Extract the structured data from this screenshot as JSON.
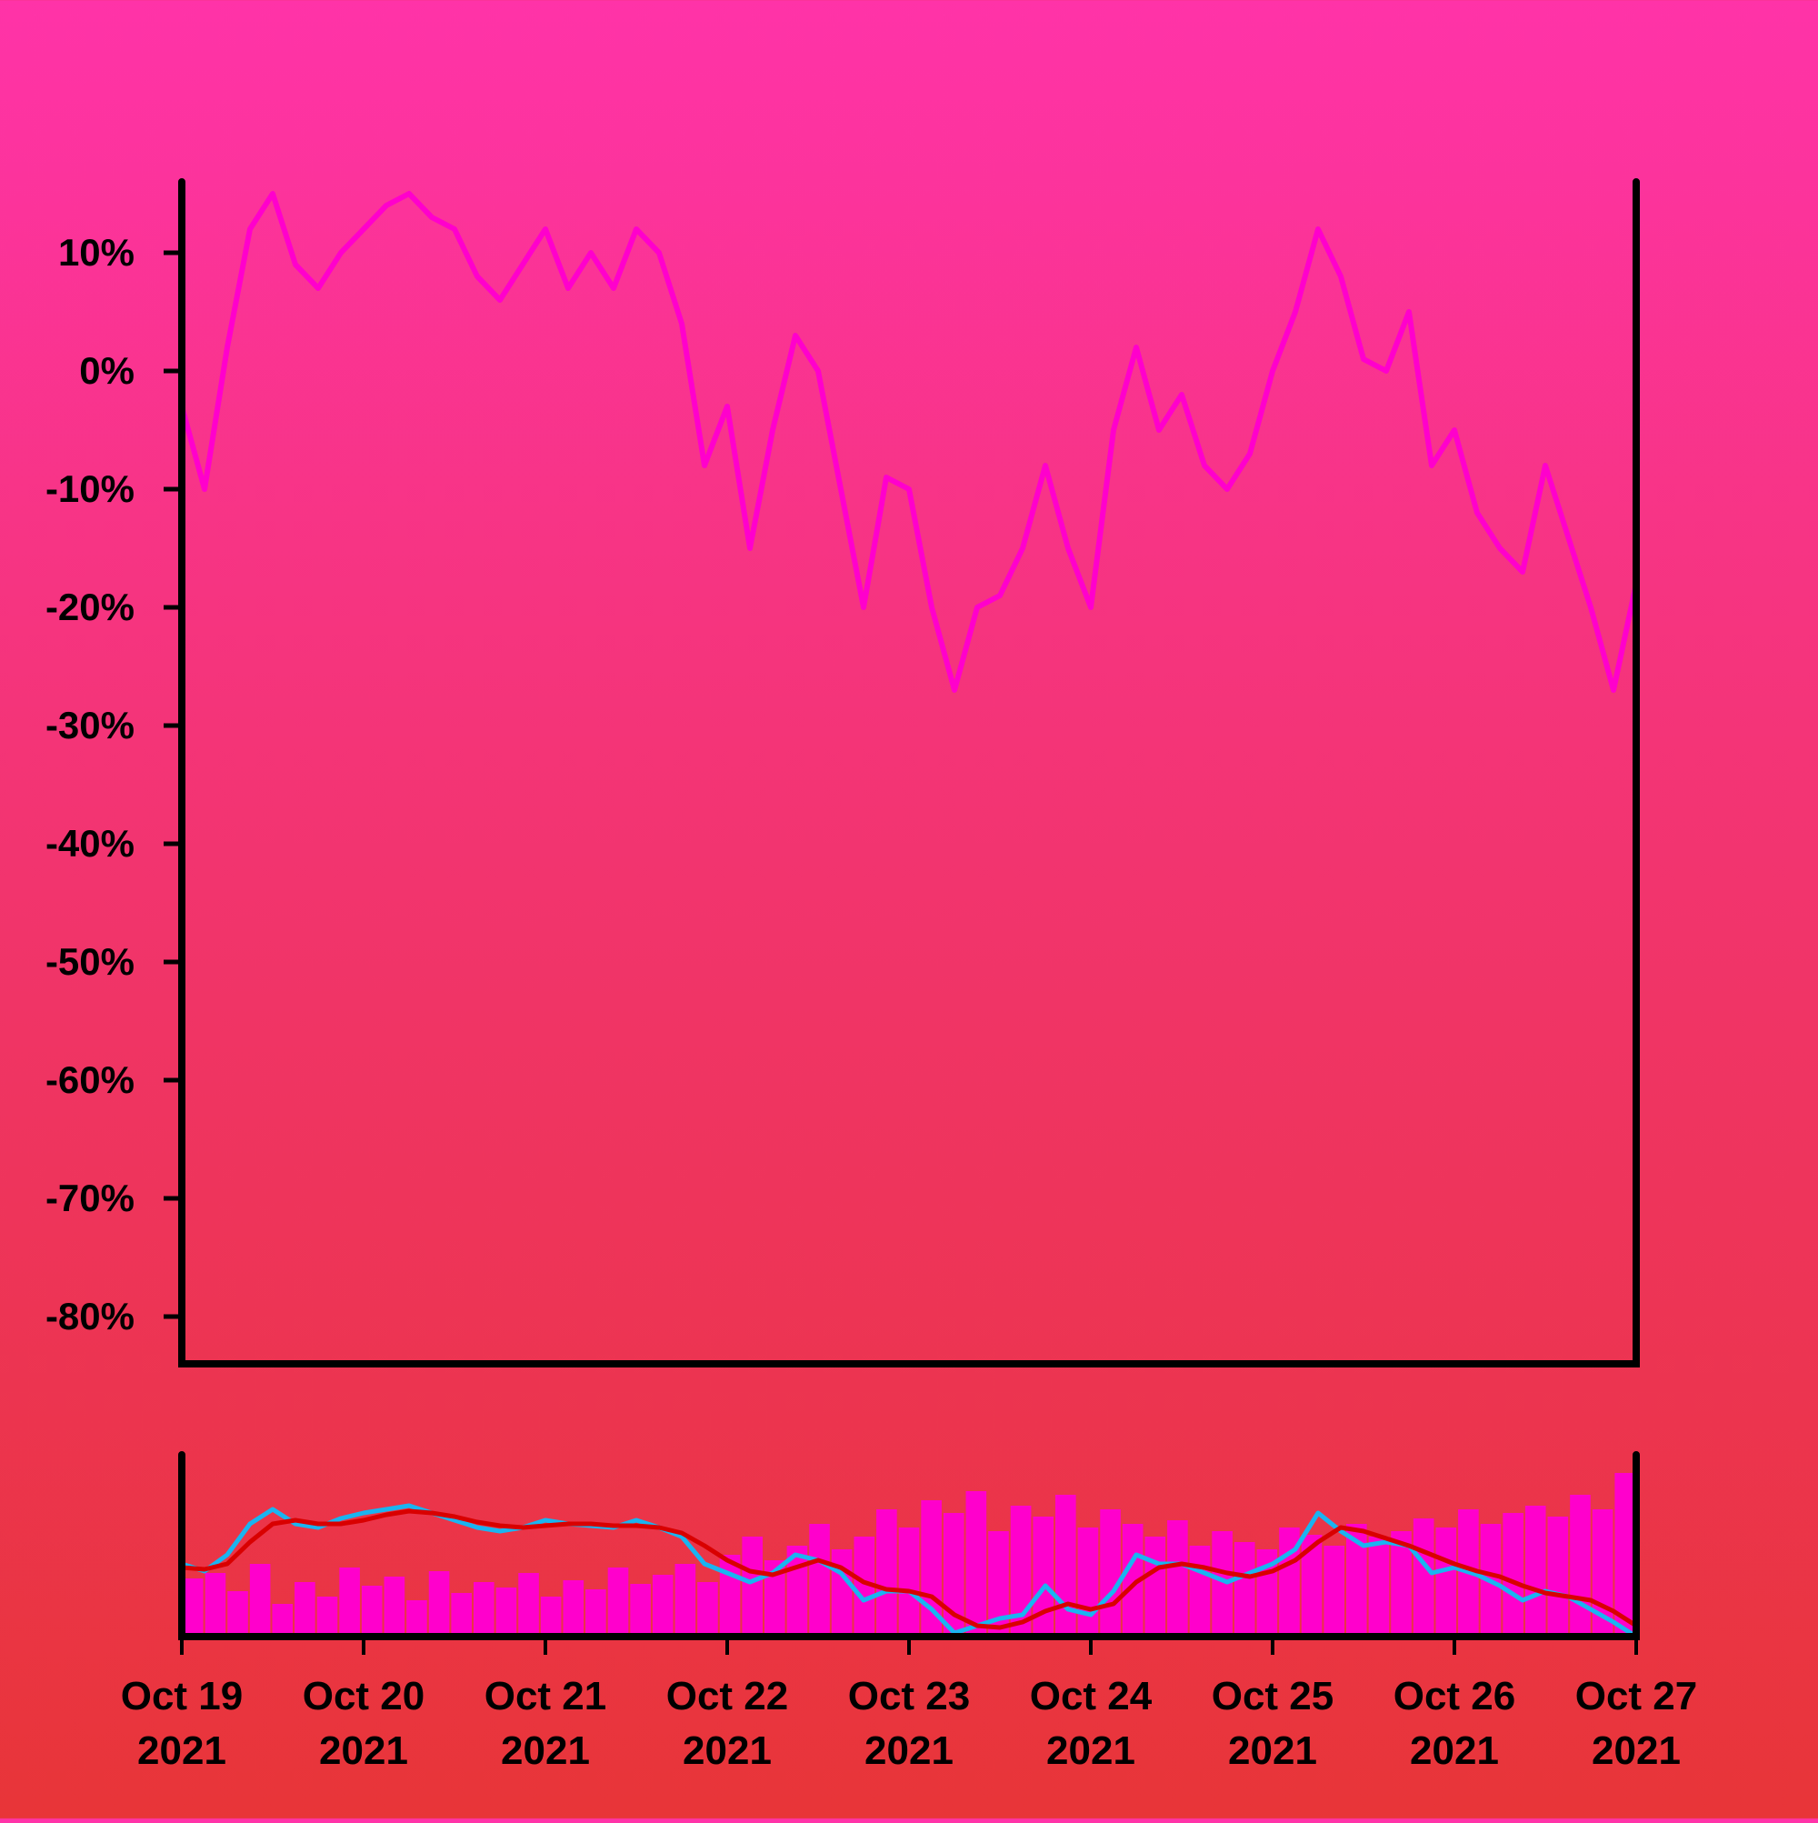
{
  "chart_data": [
    {
      "type": "line",
      "title": "",
      "xlabel": "",
      "ylabel": "",
      "ylim": [
        -0.84,
        0.16
      ],
      "yticks": [
        0.1,
        0.0,
        -0.1,
        -0.2,
        -0.3,
        -0.4,
        -0.5,
        -0.6,
        -0.7,
        -0.8
      ],
      "ytick_labels": [
        "10%",
        "0%",
        "-10%",
        "-20%",
        "-30%",
        "-40%",
        "-50%",
        "-60%",
        "-70%",
        "-80%"
      ],
      "grid": false,
      "color": "#ff00cc",
      "series": [
        {
          "x": [
            "2021-10-19 00:00",
            "2021-10-19 03:00",
            "2021-10-19 06:00",
            "2021-10-19 09:00",
            "2021-10-19 12:00",
            "2021-10-19 15:00",
            "2021-10-19 18:00",
            "2021-10-19 21:00",
            "2021-10-20 00:00",
            "2021-10-20 03:00",
            "2021-10-20 06:00",
            "2021-10-20 09:00",
            "2021-10-20 12:00",
            "2021-10-20 15:00",
            "2021-10-20 18:00",
            "2021-10-20 21:00",
            "2021-10-21 00:00",
            "2021-10-21 03:00",
            "2021-10-21 06:00",
            "2021-10-21 09:00",
            "2021-10-21 12:00",
            "2021-10-21 15:00",
            "2021-10-21 18:00",
            "2021-10-21 21:00",
            "2021-10-22 00:00",
            "2021-10-22 03:00",
            "2021-10-22 06:00",
            "2021-10-22 09:00",
            "2021-10-22 12:00",
            "2021-10-22 15:00",
            "2021-10-22 18:00",
            "2021-10-22 21:00",
            "2021-10-23 00:00",
            "2021-10-23 03:00",
            "2021-10-23 06:00",
            "2021-10-23 09:00",
            "2021-10-23 12:00",
            "2021-10-23 15:00",
            "2021-10-23 18:00",
            "2021-10-23 21:00",
            "2021-10-24 00:00",
            "2021-10-24 03:00",
            "2021-10-24 06:00",
            "2021-10-24 09:00",
            "2021-10-24 12:00",
            "2021-10-24 15:00",
            "2021-10-24 18:00",
            "2021-10-24 21:00",
            "2021-10-25 00:00",
            "2021-10-25 03:00",
            "2021-10-25 06:00",
            "2021-10-25 09:00",
            "2021-10-25 12:00",
            "2021-10-25 15:00",
            "2021-10-25 18:00",
            "2021-10-25 21:00",
            "2021-10-26 00:00",
            "2021-10-26 03:00",
            "2021-10-26 06:00",
            "2021-10-26 09:00",
            "2021-10-26 12:00",
            "2021-10-26 15:00",
            "2021-10-26 18:00",
            "2021-10-26 21:00",
            "2021-10-27 00:00"
          ],
          "y": [
            -0.03,
            -0.1,
            0.02,
            0.12,
            0.15,
            0.09,
            0.07,
            0.1,
            0.12,
            0.14,
            0.15,
            0.13,
            0.12,
            0.08,
            0.06,
            0.09,
            0.12,
            0.07,
            0.1,
            0.07,
            0.12,
            0.1,
            0.04,
            -0.08,
            -0.03,
            -0.15,
            -0.05,
            0.03,
            0.0,
            -0.1,
            -0.2,
            -0.09,
            -0.1,
            -0.2,
            -0.27,
            -0.2,
            -0.19,
            -0.15,
            -0.08,
            -0.15,
            -0.2,
            -0.05,
            0.02,
            -0.05,
            -0.02,
            -0.08,
            -0.1,
            -0.07,
            0.0,
            0.05,
            0.12,
            0.08,
            0.01,
            0.0,
            0.05,
            -0.08,
            -0.05,
            -0.12,
            -0.15,
            -0.17,
            -0.08,
            -0.14,
            -0.2,
            -0.27,
            -0.18
          ]
        }
      ]
    },
    {
      "type": "bar",
      "title": "",
      "xlabel": "",
      "ylabel": "",
      "xtick_labels": [
        "Oct 19\n2021",
        "Oct 20\n2021",
        "Oct 21\n2021",
        "Oct 22\n2021",
        "Oct 23\n2021",
        "Oct 24\n2021",
        "Oct 25\n2021",
        "Oct 26\n2021",
        "Oct 27\n2021"
      ],
      "x_range": [
        "2021-10-19",
        "2021-10-27"
      ],
      "volume_color": "#ff00cc",
      "ma_fast_color": "#1ab4f0",
      "ma_slow_color": "#d90000",
      "volume": [
        0.32,
        0.35,
        0.25,
        0.4,
        0.18,
        0.3,
        0.22,
        0.38,
        0.28,
        0.33,
        0.2,
        0.36,
        0.24,
        0.3,
        0.27,
        0.35,
        0.22,
        0.31,
        0.26,
        0.38,
        0.29,
        0.34,
        0.4,
        0.3,
        0.45,
        0.55,
        0.42,
        0.5,
        0.62,
        0.48,
        0.55,
        0.7,
        0.6,
        0.75,
        0.68,
        0.8,
        0.58,
        0.72,
        0.66,
        0.78,
        0.6,
        0.7,
        0.62,
        0.55,
        0.64,
        0.5,
        0.58,
        0.52,
        0.48,
        0.6,
        0.56,
        0.5,
        0.62,
        0.55,
        0.58,
        0.65,
        0.6,
        0.7,
        0.62,
        0.68,
        0.72,
        0.66,
        0.78,
        0.7,
        0.9
      ],
      "ma_fast": [
        0.4,
        0.36,
        0.45,
        0.62,
        0.7,
        0.62,
        0.6,
        0.65,
        0.68,
        0.7,
        0.72,
        0.68,
        0.64,
        0.6,
        0.58,
        0.6,
        0.64,
        0.62,
        0.61,
        0.6,
        0.64,
        0.6,
        0.55,
        0.4,
        0.35,
        0.3,
        0.35,
        0.45,
        0.42,
        0.35,
        0.2,
        0.25,
        0.25,
        0.15,
        0.02,
        0.06,
        0.1,
        0.12,
        0.28,
        0.15,
        0.12,
        0.25,
        0.45,
        0.4,
        0.4,
        0.35,
        0.3,
        0.35,
        0.4,
        0.48,
        0.68,
        0.58,
        0.5,
        0.52,
        0.5,
        0.35,
        0.38,
        0.34,
        0.28,
        0.2,
        0.25,
        0.22,
        0.15,
        0.08,
        0.0
      ],
      "ma_slow": [
        0.38,
        0.37,
        0.4,
        0.52,
        0.62,
        0.64,
        0.62,
        0.62,
        0.64,
        0.67,
        0.69,
        0.68,
        0.66,
        0.63,
        0.61,
        0.6,
        0.61,
        0.62,
        0.62,
        0.61,
        0.61,
        0.6,
        0.57,
        0.5,
        0.42,
        0.36,
        0.34,
        0.38,
        0.42,
        0.38,
        0.3,
        0.26,
        0.25,
        0.22,
        0.12,
        0.06,
        0.05,
        0.08,
        0.14,
        0.18,
        0.15,
        0.18,
        0.3,
        0.38,
        0.4,
        0.38,
        0.35,
        0.33,
        0.36,
        0.42,
        0.52,
        0.6,
        0.58,
        0.54,
        0.5,
        0.45,
        0.4,
        0.36,
        0.33,
        0.28,
        0.24,
        0.22,
        0.2,
        0.14,
        0.06
      ]
    }
  ]
}
